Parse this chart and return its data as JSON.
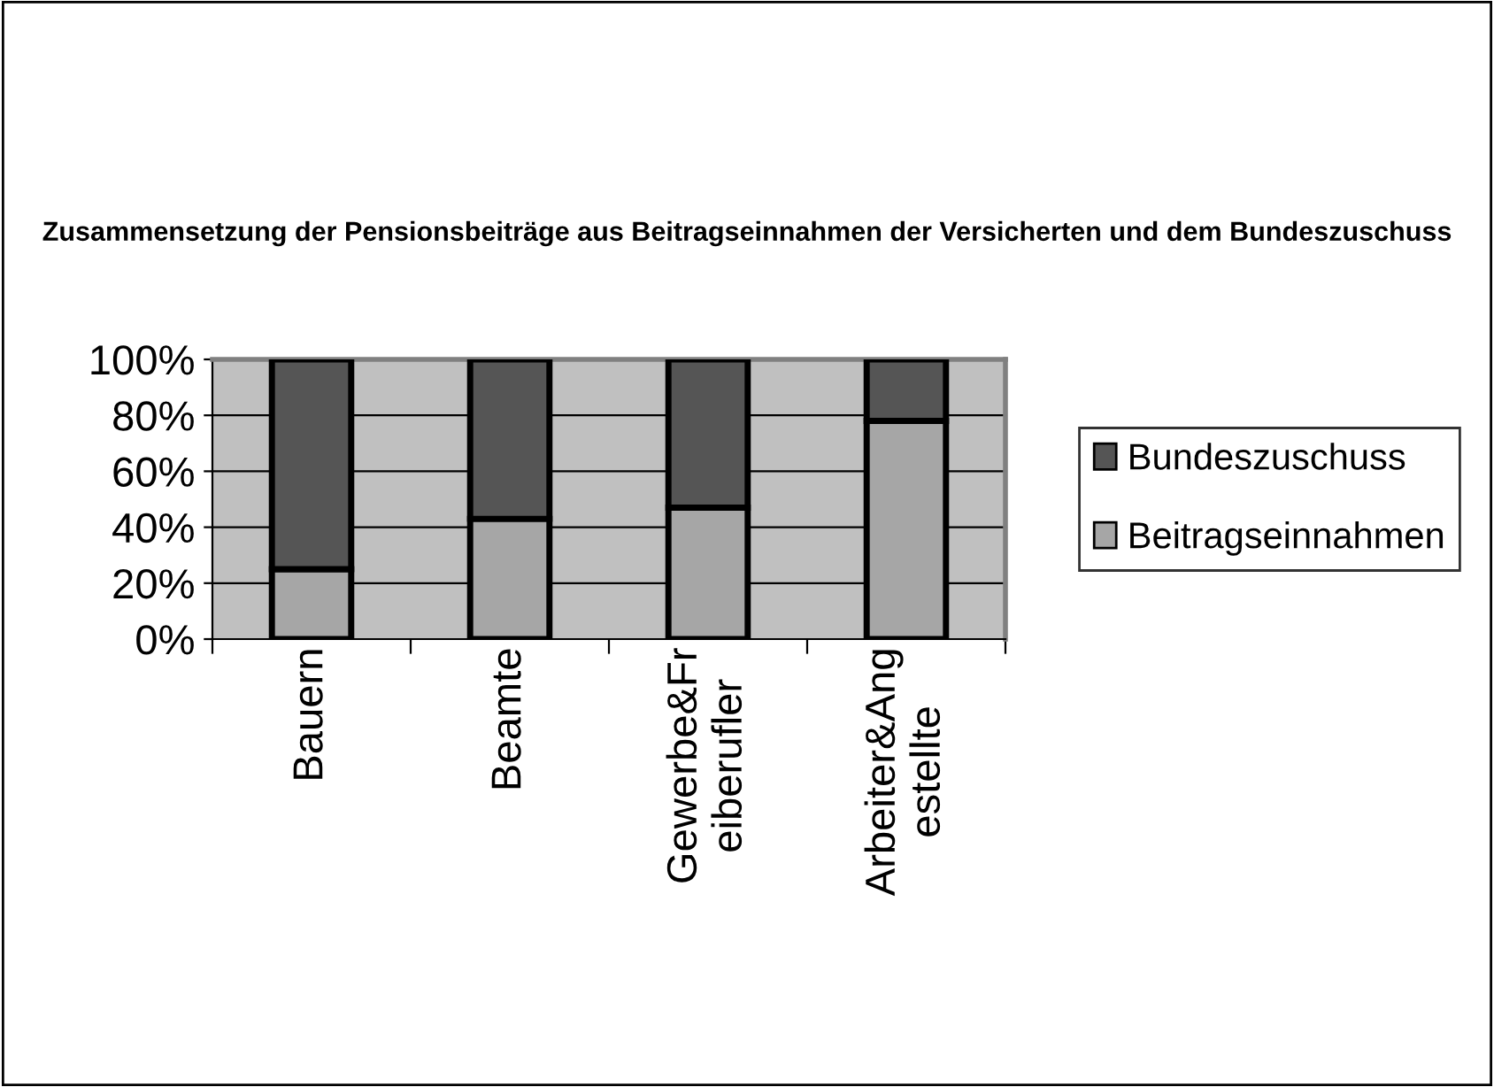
{
  "chart_data": {
    "type": "bar",
    "title": "Zusammensetzung der Pensionsbeiträge aus Beitragseinnahmen der Versicherten und dem Bundeszuschuss",
    "categories": [
      "Bauern",
      "Beamte",
      "Gewerbe&Fr\neiberufler",
      "Arbeiter&Ang\nestellte"
    ],
    "series": [
      {
        "name": "Beitragseinnahmen",
        "color": "#a6a6a6",
        "values": [
          25,
          43,
          47,
          78
        ]
      },
      {
        "name": "Bundeszuschuss",
        "color": "#555555",
        "values": [
          75,
          57,
          53,
          22
        ]
      }
    ],
    "stacked": true,
    "ylim": [
      0,
      100
    ],
    "yticks": [
      {
        "value": 0,
        "label": "0%"
      },
      {
        "value": 20,
        "label": "20%"
      },
      {
        "value": 40,
        "label": "40%"
      },
      {
        "value": 60,
        "label": "60%"
      },
      {
        "value": 80,
        "label": "80%"
      },
      {
        "value": 100,
        "label": "100%"
      }
    ],
    "grid": "y",
    "legend": "right"
  }
}
